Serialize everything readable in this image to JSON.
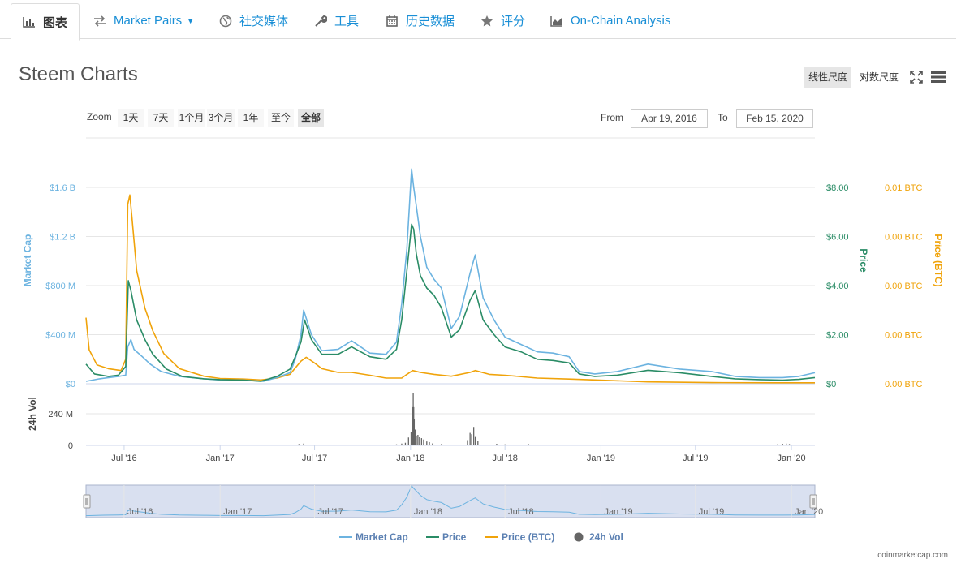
{
  "tabs": [
    {
      "label": "图表",
      "icon": "area-chart-icon"
    },
    {
      "label": "Market Pairs",
      "icon": "exchange-arrows-icon"
    },
    {
      "label": "社交媒体",
      "icon": "globe-icon"
    },
    {
      "label": "工具",
      "icon": "wrench-icon"
    },
    {
      "label": "历史数据",
      "icon": "calendar-icon"
    },
    {
      "label": "评分",
      "icon": "star-icon"
    },
    {
      "label": "On-Chain Analysis",
      "icon": "area-chart-icon"
    }
  ],
  "title": "Steem Charts",
  "scale": {
    "linear": "线性尺度",
    "log": "对数尺度",
    "selected": "linear"
  },
  "toolbar": {
    "fullscreen_icon": "fullscreen-icon",
    "menu_icon": "hamburger-menu-icon"
  },
  "zoom": {
    "label": "Zoom",
    "options": [
      "1天",
      "7天",
      "1个月",
      "3个月",
      "1年",
      "至今",
      "全部"
    ],
    "selected": "全部"
  },
  "range": {
    "from_label": "From",
    "from": "Apr 19, 2016",
    "to_label": "To",
    "to": "Feb 15, 2020"
  },
  "colors": {
    "market_cap": "#6cb3e0",
    "price": "#2a8c66",
    "price_btc": "#f0a30a",
    "volume": "#666666"
  },
  "credit": "coinmarketcap.com",
  "chart_data": {
    "type": "line",
    "x_axis": {
      "range": [
        "2016-04-19",
        "2020-02-15"
      ],
      "ticks": [
        {
          "date": "2016-07-01",
          "label": "Jul '16"
        },
        {
          "date": "2017-01-01",
          "label": "Jan '17"
        },
        {
          "date": "2017-07-01",
          "label": "Jul '17"
        },
        {
          "date": "2018-01-01",
          "label": "Jan '18"
        },
        {
          "date": "2018-07-01",
          "label": "Jul '18"
        },
        {
          "date": "2019-01-01",
          "label": "Jan '19"
        },
        {
          "date": "2019-07-01",
          "label": "Jul '19"
        },
        {
          "date": "2020-01-01",
          "label": "Jan '20"
        }
      ]
    },
    "y_axes": {
      "market_cap": {
        "title": "Market Cap",
        "ticks": [
          "$0",
          "$400 M",
          "$800 M",
          "$1.2 B",
          "$1.6 B"
        ],
        "range": [
          0,
          1.6
        ]
      },
      "price": {
        "title": "Price",
        "ticks": [
          "$0",
          "$2.00",
          "$4.00",
          "$6.00",
          "$8.00"
        ],
        "range": [
          0,
          8
        ]
      },
      "price_btc": {
        "title": "Price (BTC)",
        "ticks": [
          "0.00 BTC",
          "0.00 BTC",
          "0.00 BTC",
          "0.00 BTC",
          "0.01 BTC"
        ],
        "range": [
          0,
          0.0104
        ]
      },
      "volume": {
        "title": "24h Vol",
        "ticks": [
          "0",
          "240 M"
        ],
        "range": [
          0,
          480
        ]
      }
    },
    "grid": true,
    "legend_position": "bottom",
    "series": [
      {
        "name": "Market Cap",
        "unit": "billion USD",
        "points": [
          [
            "2016-04-19",
            0.02
          ],
          [
            "2016-05-15",
            0.04
          ],
          [
            "2016-06-20",
            0.06
          ],
          [
            "2016-07-04",
            0.07
          ],
          [
            "2016-07-08",
            0.3
          ],
          [
            "2016-07-14",
            0.36
          ],
          [
            "2016-07-20",
            0.28
          ],
          [
            "2016-08-05",
            0.22
          ],
          [
            "2016-08-20",
            0.16
          ],
          [
            "2016-09-10",
            0.1
          ],
          [
            "2016-10-15",
            0.06
          ],
          [
            "2016-12-01",
            0.04
          ],
          [
            "2017-01-01",
            0.03
          ],
          [
            "2017-02-15",
            0.03
          ],
          [
            "2017-03-25",
            0.02
          ],
          [
            "2017-04-20",
            0.05
          ],
          [
            "2017-05-15",
            0.09
          ],
          [
            "2017-05-25",
            0.2
          ],
          [
            "2017-06-05",
            0.4
          ],
          [
            "2017-06-10",
            0.6
          ],
          [
            "2017-06-25",
            0.4
          ],
          [
            "2017-07-15",
            0.27
          ],
          [
            "2017-08-15",
            0.28
          ],
          [
            "2017-09-10",
            0.35
          ],
          [
            "2017-10-15",
            0.25
          ],
          [
            "2017-11-15",
            0.24
          ],
          [
            "2017-12-05",
            0.34
          ],
          [
            "2017-12-15",
            0.65
          ],
          [
            "2017-12-25",
            1.1
          ],
          [
            "2018-01-03",
            1.75
          ],
          [
            "2018-01-07",
            1.6
          ],
          [
            "2018-01-12",
            1.45
          ],
          [
            "2018-01-20",
            1.2
          ],
          [
            "2018-02-01",
            0.95
          ],
          [
            "2018-02-15",
            0.85
          ],
          [
            "2018-03-01",
            0.78
          ],
          [
            "2018-03-20",
            0.45
          ],
          [
            "2018-04-05",
            0.55
          ],
          [
            "2018-04-25",
            0.9
          ],
          [
            "2018-05-05",
            1.05
          ],
          [
            "2018-05-20",
            0.7
          ],
          [
            "2018-06-10",
            0.52
          ],
          [
            "2018-07-01",
            0.38
          ],
          [
            "2018-08-01",
            0.32
          ],
          [
            "2018-09-01",
            0.26
          ],
          [
            "2018-10-01",
            0.25
          ],
          [
            "2018-11-01",
            0.22
          ],
          [
            "2018-11-20",
            0.1
          ],
          [
            "2018-12-20",
            0.08
          ],
          [
            "2019-02-01",
            0.1
          ],
          [
            "2019-04-01",
            0.16
          ],
          [
            "2019-06-01",
            0.12
          ],
          [
            "2019-08-01",
            0.1
          ],
          [
            "2019-09-15",
            0.06
          ],
          [
            "2019-11-01",
            0.05
          ],
          [
            "2019-12-15",
            0.05
          ],
          [
            "2020-01-15",
            0.06
          ],
          [
            "2020-02-15",
            0.09
          ]
        ]
      },
      {
        "name": "Price",
        "unit": "USD",
        "points": [
          [
            "2016-04-19",
            0.8
          ],
          [
            "2016-05-05",
            0.4
          ],
          [
            "2016-06-01",
            0.3
          ],
          [
            "2016-06-20",
            0.35
          ],
          [
            "2016-07-04",
            0.7
          ],
          [
            "2016-07-09",
            4.2
          ],
          [
            "2016-07-14",
            3.8
          ],
          [
            "2016-07-25",
            2.6
          ],
          [
            "2016-08-10",
            1.8
          ],
          [
            "2016-08-25",
            1.2
          ],
          [
            "2016-09-20",
            0.6
          ],
          [
            "2016-10-20",
            0.3
          ],
          [
            "2016-12-01",
            0.2
          ],
          [
            "2017-01-01",
            0.17
          ],
          [
            "2017-02-15",
            0.15
          ],
          [
            "2017-03-20",
            0.1
          ],
          [
            "2017-04-20",
            0.3
          ],
          [
            "2017-05-15",
            0.6
          ],
          [
            "2017-05-25",
            1.1
          ],
          [
            "2017-06-05",
            1.7
          ],
          [
            "2017-06-12",
            2.6
          ],
          [
            "2017-06-25",
            1.8
          ],
          [
            "2017-07-15",
            1.2
          ],
          [
            "2017-08-15",
            1.2
          ],
          [
            "2017-09-10",
            1.5
          ],
          [
            "2017-10-15",
            1.1
          ],
          [
            "2017-11-15",
            1.0
          ],
          [
            "2017-12-05",
            1.4
          ],
          [
            "2017-12-15",
            2.6
          ],
          [
            "2017-12-25",
            4.6
          ],
          [
            "2018-01-03",
            6.5
          ],
          [
            "2018-01-07",
            6.3
          ],
          [
            "2018-01-12",
            5.3
          ],
          [
            "2018-01-20",
            4.4
          ],
          [
            "2018-02-01",
            3.9
          ],
          [
            "2018-02-15",
            3.6
          ],
          [
            "2018-03-01",
            3.1
          ],
          [
            "2018-03-20",
            1.9
          ],
          [
            "2018-04-05",
            2.2
          ],
          [
            "2018-04-25",
            3.4
          ],
          [
            "2018-05-05",
            3.8
          ],
          [
            "2018-05-20",
            2.6
          ],
          [
            "2018-06-10",
            2.0
          ],
          [
            "2018-07-01",
            1.5
          ],
          [
            "2018-08-01",
            1.3
          ],
          [
            "2018-09-01",
            1.0
          ],
          [
            "2018-10-01",
            0.95
          ],
          [
            "2018-11-01",
            0.85
          ],
          [
            "2018-11-20",
            0.4
          ],
          [
            "2018-12-20",
            0.3
          ],
          [
            "2019-02-01",
            0.35
          ],
          [
            "2019-04-01",
            0.55
          ],
          [
            "2019-06-01",
            0.45
          ],
          [
            "2019-08-01",
            0.3
          ],
          [
            "2019-09-15",
            0.2
          ],
          [
            "2019-11-01",
            0.17
          ],
          [
            "2019-12-15",
            0.15
          ],
          [
            "2020-01-15",
            0.18
          ],
          [
            "2020-02-15",
            0.25
          ]
        ]
      },
      {
        "name": "Price (BTC)",
        "unit": "BTC",
        "points": [
          [
            "2016-04-19",
            0.0035
          ],
          [
            "2016-04-25",
            0.0018
          ],
          [
            "2016-05-10",
            0.001
          ],
          [
            "2016-06-01",
            0.0008
          ],
          [
            "2016-06-25",
            0.0007
          ],
          [
            "2016-07-04",
            0.0013
          ],
          [
            "2016-07-08",
            0.0095
          ],
          [
            "2016-07-12",
            0.01
          ],
          [
            "2016-07-16",
            0.0088
          ],
          [
            "2016-07-25",
            0.006
          ],
          [
            "2016-08-10",
            0.004
          ],
          [
            "2016-08-25",
            0.0028
          ],
          [
            "2016-09-15",
            0.0016
          ],
          [
            "2016-10-15",
            0.0008
          ],
          [
            "2016-12-01",
            0.0004
          ],
          [
            "2017-01-01",
            0.00028
          ],
          [
            "2017-02-15",
            0.00025
          ],
          [
            "2017-03-20",
            0.0002
          ],
          [
            "2017-04-20",
            0.0003
          ],
          [
            "2017-05-15",
            0.0005
          ],
          [
            "2017-06-05",
            0.0012
          ],
          [
            "2017-06-15",
            0.0014
          ],
          [
            "2017-07-01",
            0.0011
          ],
          [
            "2017-07-15",
            0.0008
          ],
          [
            "2017-08-15",
            0.0006
          ],
          [
            "2017-09-10",
            0.0006
          ],
          [
            "2017-10-15",
            0.00045
          ],
          [
            "2017-11-15",
            0.0003
          ],
          [
            "2017-12-15",
            0.0003
          ],
          [
            "2017-12-25",
            0.0005
          ],
          [
            "2018-01-05",
            0.0007
          ],
          [
            "2018-01-20",
            0.0006
          ],
          [
            "2018-02-15",
            0.0005
          ],
          [
            "2018-03-20",
            0.0004
          ],
          [
            "2018-04-25",
            0.0006
          ],
          [
            "2018-05-05",
            0.0007
          ],
          [
            "2018-06-01",
            0.0005
          ],
          [
            "2018-07-01",
            0.00045
          ],
          [
            "2018-09-01",
            0.0003
          ],
          [
            "2018-11-01",
            0.00025
          ],
          [
            "2018-12-20",
            0.0002
          ],
          [
            "2019-04-01",
            0.0001
          ],
          [
            "2019-08-01",
            6e-05
          ],
          [
            "2019-12-01",
            5e-05
          ],
          [
            "2020-02-15",
            5e-05
          ]
        ]
      }
    ],
    "volume_bars": {
      "name": "24h Vol",
      "unit": "million USD",
      "points": [
        [
          "2017-06-01",
          10
        ],
        [
          "2017-06-10",
          14
        ],
        [
          "2017-07-20",
          5
        ],
        [
          "2017-11-20",
          4
        ],
        [
          "2017-12-05",
          8
        ],
        [
          "2017-12-15",
          14
        ],
        [
          "2017-12-22",
          20
        ],
        [
          "2017-12-28",
          60
        ],
        [
          "2018-01-02",
          100
        ],
        [
          "2018-01-04",
          160
        ],
        [
          "2018-01-05",
          290
        ],
        [
          "2018-01-06",
          400
        ],
        [
          "2018-01-07",
          290
        ],
        [
          "2018-01-08",
          200
        ],
        [
          "2018-01-10",
          120
        ],
        [
          "2018-01-12",
          75
        ],
        [
          "2018-01-15",
          80
        ],
        [
          "2018-01-18",
          65
        ],
        [
          "2018-01-22",
          55
        ],
        [
          "2018-01-26",
          45
        ],
        [
          "2018-02-01",
          30
        ],
        [
          "2018-02-06",
          25
        ],
        [
          "2018-02-12",
          15
        ],
        [
          "2018-03-01",
          10
        ],
        [
          "2018-04-20",
          40
        ],
        [
          "2018-04-25",
          95
        ],
        [
          "2018-04-28",
          85
        ],
        [
          "2018-05-02",
          140
        ],
        [
          "2018-05-05",
          70
        ],
        [
          "2018-05-10",
          35
        ],
        [
          "2018-06-15",
          12
        ],
        [
          "2018-07-01",
          8
        ],
        [
          "2018-08-01",
          6
        ],
        [
          "2018-08-15",
          10
        ],
        [
          "2018-09-15",
          5
        ],
        [
          "2018-11-15",
          6
        ],
        [
          "2019-01-10",
          5
        ],
        [
          "2019-02-20",
          6
        ],
        [
          "2019-03-10",
          4
        ],
        [
          "2019-04-05",
          6
        ],
        [
          "2019-11-20",
          5
        ],
        [
          "2019-12-05",
          8
        ],
        [
          "2019-12-15",
          12
        ],
        [
          "2019-12-22",
          14
        ],
        [
          "2019-12-28",
          10
        ],
        [
          "2020-01-10",
          6
        ]
      ]
    },
    "navigator": {
      "series": "Market Cap",
      "labels": [
        "Jul '16",
        "Jan '17",
        "Jul '17",
        "Jan '18",
        "Jul '18",
        "Jan '19",
        "Jul '19",
        "Jan '20"
      ]
    },
    "legend": [
      {
        "label": "Market Cap",
        "color": "#6cb3e0"
      },
      {
        "label": "Price",
        "color": "#2a8c66"
      },
      {
        "label": "Price (BTC)",
        "color": "#f0a30a"
      },
      {
        "label": "24h Vol",
        "color": "#666666"
      }
    ]
  }
}
